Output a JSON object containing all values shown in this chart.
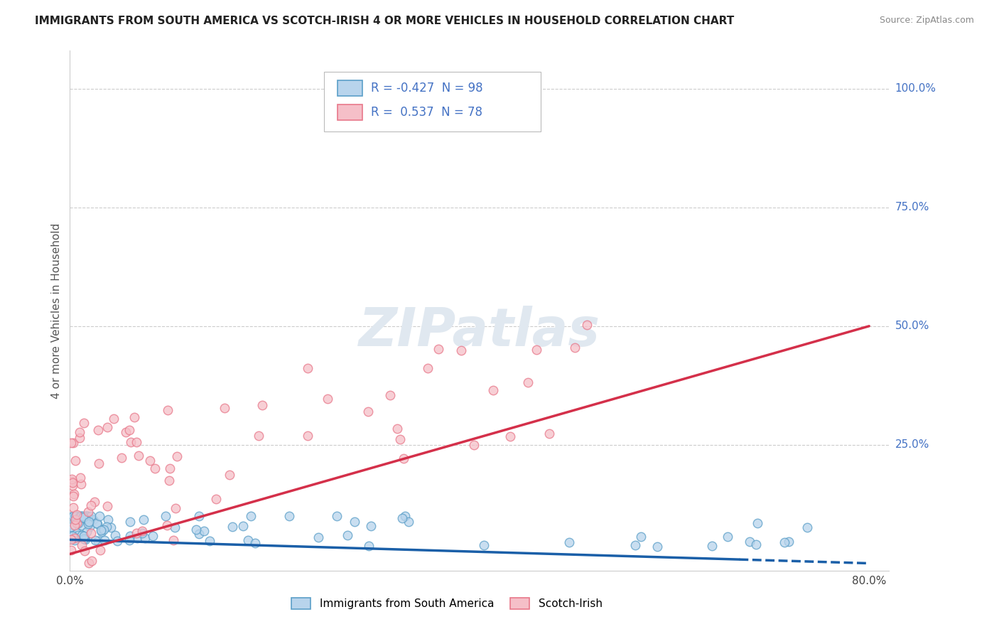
{
  "title": "IMMIGRANTS FROM SOUTH AMERICA VS SCOTCH-IRISH 4 OR MORE VEHICLES IN HOUSEHOLD CORRELATION CHART",
  "source": "Source: ZipAtlas.com",
  "ylabel": "4 or more Vehicles in Household",
  "xlim": [
    0.0,
    0.82
  ],
  "ylim": [
    -0.015,
    1.08
  ],
  "legend_r_blue": "-0.427",
  "legend_n_blue": "98",
  "legend_r_pink": "0.537",
  "legend_n_pink": "78",
  "ytick_vals": [
    0.0,
    0.25,
    0.5,
    0.75,
    1.0
  ],
  "ytick_labels": [
    "",
    "25.0%",
    "50.0%",
    "75.0%",
    "100.0%"
  ],
  "xtick_labels": [
    "0.0%",
    "80.0%"
  ],
  "blue_face": "#b8d4ec",
  "blue_edge": "#5b9fc8",
  "pink_face": "#f5bfc8",
  "pink_edge": "#e8788a",
  "blue_line": "#1a5fa8",
  "pink_line": "#d4304a",
  "grid_color": "#cccccc",
  "right_label_color": "#4472c4",
  "watermark_color": "#e0e8f0",
  "background": "#ffffff"
}
